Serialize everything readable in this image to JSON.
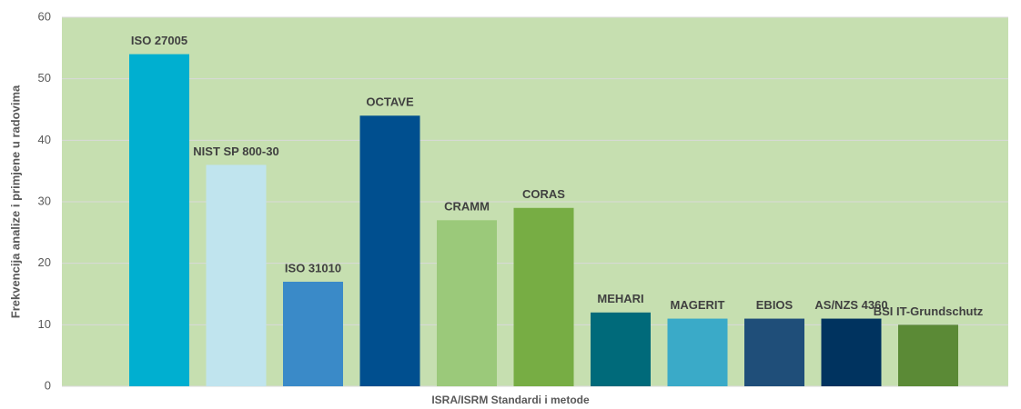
{
  "chart_data": {
    "type": "bar",
    "categories": [
      "ISO 27005",
      "NIST SP 800-30",
      "ISO 31010",
      "OCTAVE",
      "CRAMM",
      "CORAS",
      "MEHARI",
      "MAGERIT",
      "EBIOS",
      "AS/NZS 4360",
      "BSI IT-Grundschutz"
    ],
    "values": [
      54,
      36,
      17,
      44,
      27,
      29,
      12,
      11,
      11,
      11,
      10
    ],
    "colors": [
      "#00afd0",
      "#c0e4ee",
      "#3a8ac8",
      "#004f8f",
      "#9bc97a",
      "#77ad44",
      "#006a7a",
      "#3aaac8",
      "#1f4e79",
      "#00335f",
      "#5b8a36"
    ],
    "xlabel": "ISRA/ISRM Standardi i metode",
    "ylabel": "Frekvencija analize i primjene u radovima",
    "ylim": [
      0,
      60
    ],
    "yticks": [
      0,
      10,
      20,
      30,
      40,
      50,
      60
    ],
    "grid": true
  }
}
